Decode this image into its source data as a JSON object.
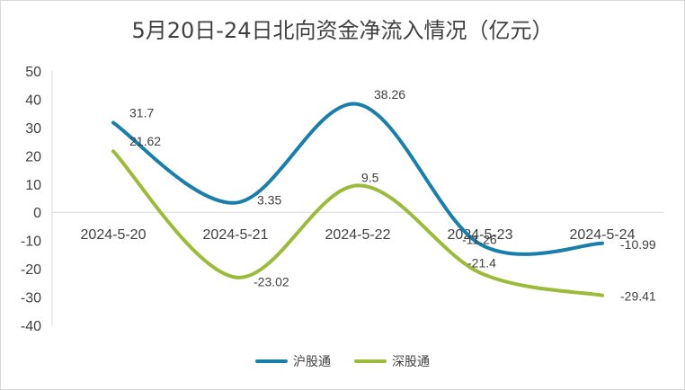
{
  "chart_data": {
    "type": "line",
    "title": "5月20日-24日北向资金净流入情况（亿元）",
    "categories": [
      "2024-5-20",
      "2024-5-21",
      "2024-5-22",
      "2024-5-23",
      "2024-5-24"
    ],
    "ylim": [
      -40,
      50
    ],
    "yticks": [
      50,
      40,
      30,
      20,
      10,
      0,
      -10,
      -20,
      -30,
      -40
    ],
    "grid": false,
    "legend_position": "bottom",
    "smooth": true,
    "series": [
      {
        "name": "沪股通",
        "color": "#1a7eab",
        "values": [
          31.7,
          3.35,
          38.26,
          -11.26,
          -10.99
        ],
        "labels": [
          "31.7",
          "3.35",
          "38.26",
          "-11.26",
          "-10.99"
        ]
      },
      {
        "name": "深股通",
        "color": "#9bbb3a",
        "values": [
          21.62,
          -23.02,
          9.5,
          -21.4,
          -29.41
        ],
        "labels": [
          "21.62",
          "-23.02",
          "9.5",
          "-21.4",
          "-29.41"
        ]
      }
    ]
  }
}
